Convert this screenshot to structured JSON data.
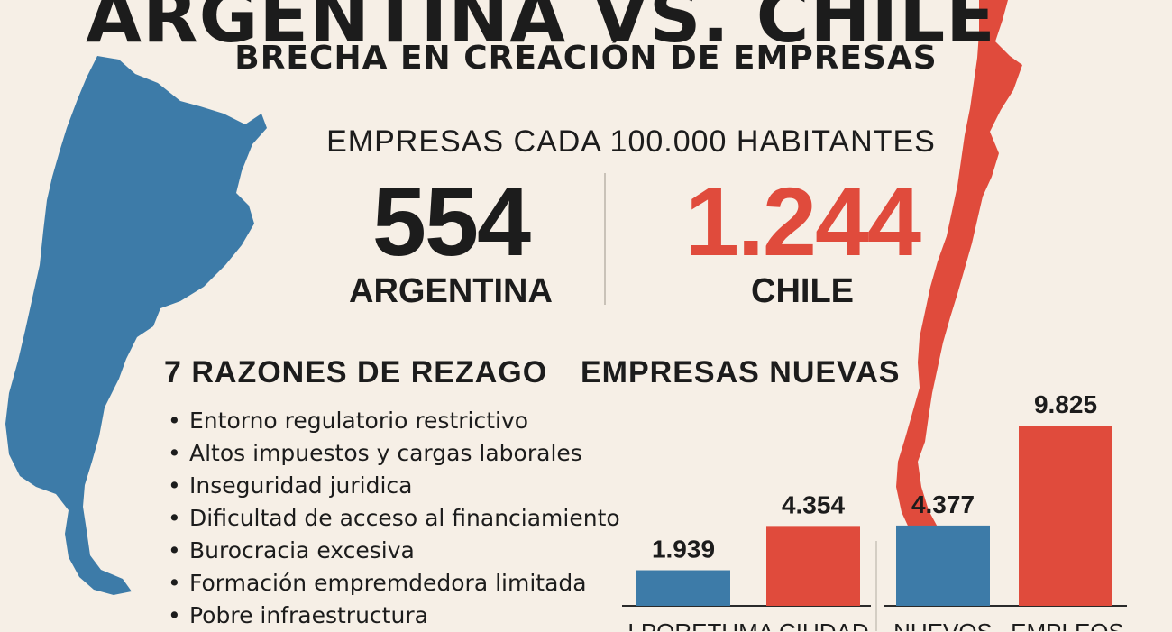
{
  "header": {
    "title": "ARGENTINA VS. CHILE",
    "subtitle": "BRECHA EN CREACIÓN DE EMPRESAS"
  },
  "metric": {
    "heading": "EMPRESAS CADA 100.000 HABITANTES",
    "argentina_value": "554",
    "argentina_label": "ARGENTINA",
    "chile_value": "1.244",
    "chile_label": "CHILE"
  },
  "reasons": {
    "heading": "7 RAZONES DE REZAGO",
    "items": [
      "Entorno regulatorio restrictivo",
      "Altos impuestos y cargas laborales",
      "Inseguridad juridica",
      "Dificultad de acceso al financiamiento",
      "Burocracia excesiva",
      "Formación empremdedora limitada",
      "Pobre infraestructura"
    ]
  },
  "colors": {
    "argentina": "#3d7ba8",
    "chile": "#e04b3c",
    "text": "#1c1c1c",
    "background": "#f6efe6"
  },
  "chart_data": {
    "type": "bar",
    "title": "EMPRESAS NUEVAS",
    "categories": [
      "LPORETUMA CIUDAD",
      "NUEVOS",
      "EMPLEOS"
    ],
    "series": [
      {
        "color": "#3d7ba8",
        "values": [
          1939,
          4377,
          null
        ],
        "labels": [
          "1.939",
          "4.377",
          ""
        ]
      },
      {
        "color": "#e04b3c",
        "values": [
          4354,
          null,
          9825
        ],
        "labels": [
          "4.354",
          "",
          "9.825"
        ]
      }
    ],
    "grid": false,
    "legend": "none"
  }
}
